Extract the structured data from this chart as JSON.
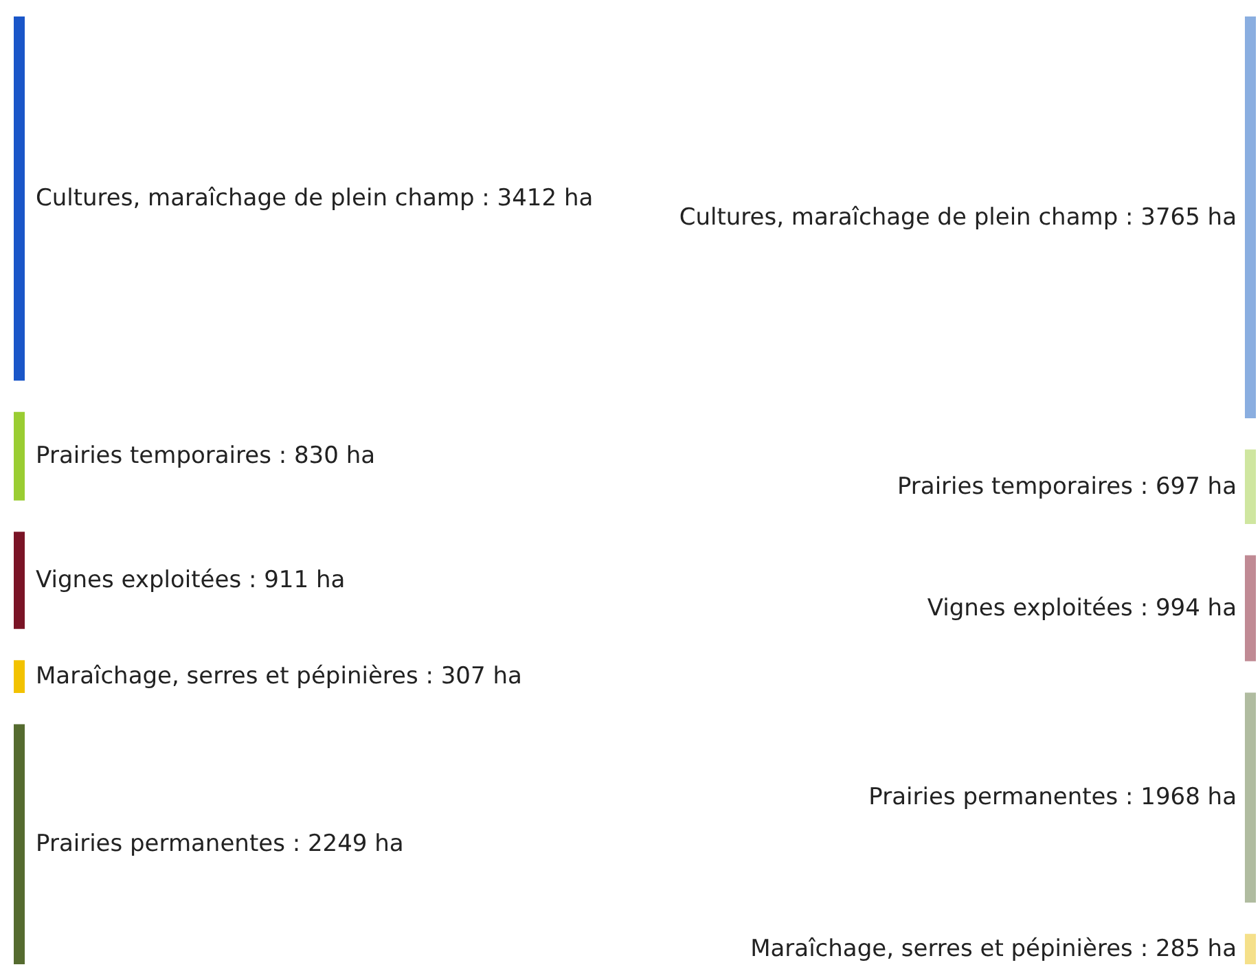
{
  "chart_data": [
    {
      "type": "other",
      "categories": [
        "Cultures, maraîchage de plein champ",
        "Prairies temporaires",
        "Vignes exploitées",
        "Maraîchage, serres et pépinières",
        "Prairies permanentes"
      ],
      "values": [
        3412,
        830,
        911,
        307,
        2249
      ],
      "value_labels": [
        ": 3412 ha",
        ": 830 ha",
        ": 911 ha",
        ": 307 ha",
        ": 2249 ha"
      ],
      "colors": [
        "#1a56c8",
        "#9acd32",
        "#7a1426",
        "#f2c200",
        "#556b2f"
      ]
    },
    {
      "type": "other",
      "categories": [
        "Cultures, maraîchage de plein champ",
        "Prairies temporaires",
        "Vignes exploitées",
        "Prairies permanentes",
        "Maraîchage, serres et pépinières"
      ],
      "values": [
        3765,
        697,
        994,
        1968,
        285
      ],
      "value_labels": [
        ": 3765 ha",
        ": 697 ha",
        ": 994 ha",
        ": 1968 ha",
        ": 285 ha"
      ],
      "colors": [
        "#8aaee0",
        "#cfe6a0",
        "#c08a94",
        "#b0bca0",
        "#f5e08a"
      ]
    }
  ]
}
